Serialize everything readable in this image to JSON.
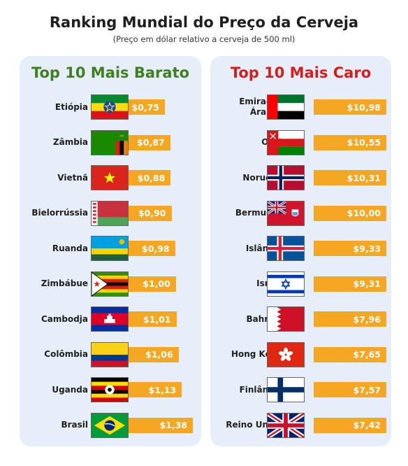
{
  "header": {
    "title": "Ranking Mundial do Preço da Cerveja",
    "subtitle": "(Preço em dólar relativo a cerveja de 500 ml)"
  },
  "chart_data": [
    {
      "type": "bar",
      "title": "Top 10 Mais Barato",
      "title_color": "#3f7f1f",
      "bar_color": "#f5a623",
      "categories": [
        "Etiópia",
        "Zâmbia",
        "Vietnã",
        "Bielorrússia",
        "Ruanda",
        "Zimbábue",
        "Cambodja",
        "Colômbia",
        "Uganda",
        "Brasil"
      ],
      "values": [
        0.75,
        0.87,
        0.88,
        0.9,
        0.98,
        1.0,
        1.01,
        1.06,
        1.13,
        1.38
      ],
      "labels": [
        "$0,75",
        "$0,87",
        "$0,88",
        "$0,90",
        "$0,98",
        "$1,00",
        "$1,01",
        "$1,06",
        "$1,13",
        "$1,38"
      ],
      "flags": [
        "ethiopia-flag-icon",
        "zambia-flag-icon",
        "vietnam-flag-icon",
        "belarus-flag-icon",
        "rwanda-flag-icon",
        "zimbabwe-flag-icon",
        "cambodia-flag-icon",
        "colombia-flag-icon",
        "uganda-flag-icon",
        "brazil-flag-icon"
      ]
    },
    {
      "type": "bar",
      "title": "Top 10 Mais Caro",
      "title_color": "#d41f1f",
      "bar_color": "#f5a623",
      "categories": [
        "Emirados Árabes",
        "Omã",
        "Noruega",
        "Bermudas",
        "Islândia",
        "Israel",
        "Bahrain",
        "Hong Kong",
        "Finlândia",
        "Reino Unido"
      ],
      "values": [
        10.98,
        10.55,
        10.31,
        10.0,
        9.33,
        9.31,
        7.96,
        7.65,
        7.57,
        7.42
      ],
      "labels": [
        "$10,98",
        "$10,55",
        "$10,31",
        "$10,00",
        "$9,33",
        "$9,31",
        "$7,96",
        "$7,65",
        "$7,57",
        "$7,42"
      ],
      "flags": [
        "uae-flag-icon",
        "oman-flag-icon",
        "norway-flag-icon",
        "bermuda-flag-icon",
        "iceland-flag-icon",
        "israel-flag-icon",
        "bahrain-flag-icon",
        "hong-kong-flag-icon",
        "finland-flag-icon",
        "uk-flag-icon"
      ]
    }
  ]
}
